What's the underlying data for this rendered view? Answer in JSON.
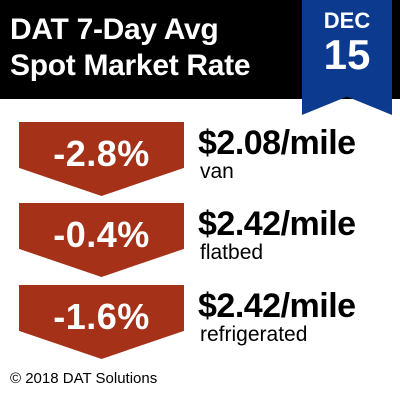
{
  "header": {
    "title_line1": "DAT 7-Day Avg",
    "title_line2": "Spot Market Rate",
    "date": {
      "month": "DEC",
      "day": "15"
    }
  },
  "rates": [
    {
      "change": "-2.8%",
      "price": "$2.08/mile",
      "equipment": "van"
    },
    {
      "change": "-0.4%",
      "price": "$2.42/mile",
      "equipment": "flatbed"
    },
    {
      "change": "-1.6%",
      "price": "$2.42/mile",
      "equipment": "refrigerated"
    }
  ],
  "footer": {
    "copyright": "© 2018 DAT Solutions"
  },
  "colors": {
    "header_bg": "#000000",
    "date_ribbon": "#0c3a8e",
    "change_arrow": "#a53118",
    "text": "#000000"
  }
}
